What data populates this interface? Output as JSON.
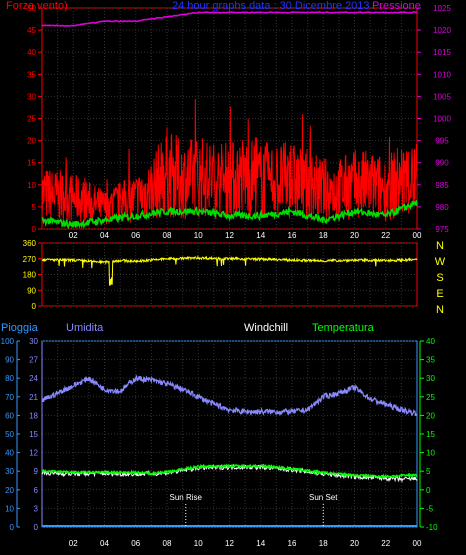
{
  "title": "24 hour graphs data : 30 Dicembre 2013",
  "chart_data": [
    {
      "type": "line",
      "title": "24 hour graphs data : 30 Dicembre 2013",
      "ylabel_left": "Forza vento)",
      "ylabel_right": "Pressione",
      "ylim_left": [
        0,
        50
      ],
      "ylim_right": [
        975,
        1025
      ],
      "yticks_left": [
        "0",
        "5",
        "10",
        "15",
        "20",
        "25",
        "30",
        "35",
        "40",
        "45",
        "50"
      ],
      "yticks_right": [
        "975",
        "980",
        "985",
        "990",
        "995",
        "1000",
        "1005",
        "1010",
        "1015",
        "1020",
        "1025"
      ],
      "xticks": [
        "02",
        "04",
        "06",
        "08",
        "10",
        "12",
        "14",
        "16",
        "18",
        "20",
        "22",
        "00"
      ],
      "grid": true,
      "colors": {
        "wind": "#ff0000",
        "gust_base": "#00dd00",
        "pressure": "#dd00dd",
        "axis_left": "#ff0000",
        "axis_right": "#dd00dd"
      },
      "series": [
        {
          "name": "Forza vento)",
          "x_hours": [
            0,
            2,
            4,
            6,
            7,
            8,
            9,
            10,
            11,
            12,
            13,
            14,
            15,
            16,
            17,
            18,
            19,
            20,
            21,
            22,
            23,
            24
          ],
          "values": [
            8,
            7,
            5,
            7,
            9,
            13,
            11,
            12,
            11,
            11,
            12,
            11,
            11,
            11,
            10,
            9,
            9,
            10,
            10,
            9,
            11,
            11
          ]
        },
        {
          "name": "green",
          "x_hours": [
            0,
            2,
            4,
            6,
            8,
            10,
            12,
            14,
            16,
            18,
            20,
            22,
            24
          ],
          "values": [
            2,
            1,
            2,
            3,
            4,
            4,
            3,
            3,
            4,
            2,
            4,
            3,
            6
          ]
        },
        {
          "name": "Pressione",
          "x_hours": [
            0,
            2,
            4,
            6,
            8,
            10,
            12,
            14,
            16,
            18,
            20,
            22,
            24
          ],
          "values": [
            1021,
            1021,
            1022,
            1022,
            1023,
            1024,
            1024,
            1024,
            1024,
            1024,
            1024,
            1024,
            1024
          ]
        }
      ]
    },
    {
      "type": "line",
      "ylim": [
        0,
        360
      ],
      "yticks": [
        "0",
        "90",
        "180",
        "270",
        "360"
      ],
      "compass_labels": [
        "N",
        "W",
        "S",
        "E",
        "N"
      ],
      "xticks": [
        "02",
        "04",
        "06",
        "08",
        "10",
        "12",
        "14",
        "16",
        "18",
        "20",
        "22",
        "00"
      ],
      "colors": {
        "direction": "#ffff00",
        "axis": "#ff0000",
        "compass": "#ffff00"
      },
      "series": [
        {
          "name": "direction",
          "x_hours": [
            0,
            2,
            4,
            5,
            6,
            8,
            10,
            12,
            14,
            16,
            18,
            20,
            22,
            24
          ],
          "values": [
            265,
            262,
            250,
            260,
            255,
            270,
            275,
            270,
            268,
            262,
            258,
            262,
            260,
            265
          ]
        }
      ]
    },
    {
      "type": "line",
      "labels": {
        "rain": "Pioggia",
        "humidity": "Umidita",
        "windchill": "Windchill",
        "temperature": "Temperatura"
      },
      "ylim_rain": [
        0,
        100
      ],
      "ylim_humidity": [
        0,
        30
      ],
      "ylim_temp": [
        -10,
        40
      ],
      "yticks_rain": [
        "0",
        "10",
        "20",
        "30",
        "40",
        "50",
        "60",
        "70",
        "80",
        "90",
        "100"
      ],
      "yticks_humidity": [
        "0",
        "3",
        "6",
        "9",
        "12",
        "15",
        "18",
        "21",
        "24",
        "27",
        "30"
      ],
      "yticks_temp": [
        "-10",
        "-5",
        "0",
        "5",
        "10",
        "15",
        "20",
        "25",
        "30",
        "35",
        "40"
      ],
      "xticks": [
        "02",
        "04",
        "06",
        "08",
        "10",
        "12",
        "14",
        "16",
        "18",
        "20",
        "22",
        "00"
      ],
      "annotations": [
        {
          "label": "Sun Rise",
          "x_hour": 9.2
        },
        {
          "label": "Sun Set",
          "x_hour": 18.0
        }
      ],
      "colors": {
        "rain": "#3399ff",
        "humidity": "#8888ff",
        "windchill": "#ffffff",
        "temperature": "#00ff00",
        "axis_temp": "#00ff00",
        "axis_rain": "#3399ff"
      },
      "series": [
        {
          "name": "Umidita",
          "x_hours": [
            0,
            1,
            2,
            3,
            4,
            5,
            6,
            7,
            8,
            9,
            10,
            11,
            12,
            13,
            14,
            15,
            16,
            17,
            18,
            19,
            20,
            21,
            22,
            23,
            24
          ],
          "values": [
            68,
            72,
            76,
            80,
            74,
            73,
            80,
            79,
            77,
            74,
            70,
            66,
            63,
            62,
            62,
            62,
            62,
            63,
            70,
            72,
            75,
            69,
            66,
            63,
            61
          ]
        },
        {
          "name": "Temperatura",
          "x_hours": [
            0,
            2,
            4,
            6,
            7,
            8,
            10,
            12,
            14,
            16,
            18,
            20,
            22,
            24
          ],
          "values": [
            5,
            4.7,
            4.7,
            4.6,
            4.4,
            4.8,
            6.2,
            6.4,
            6.4,
            5.7,
            4.6,
            3.9,
            3.6,
            4.0
          ]
        },
        {
          "name": "Windchill",
          "x_hours": [
            0,
            2,
            4,
            6,
            8,
            10,
            12,
            14,
            16,
            18,
            20,
            22,
            23,
            24
          ],
          "values": [
            4.5,
            4.3,
            4.4,
            4.2,
            4.5,
            5.9,
            6.1,
            6.1,
            5.4,
            4.3,
            3.5,
            3.1,
            2.8,
            3.0
          ]
        },
        {
          "name": "Pioggia",
          "x_hours": [
            0,
            24
          ],
          "values": [
            0,
            0
          ]
        }
      ]
    }
  ]
}
